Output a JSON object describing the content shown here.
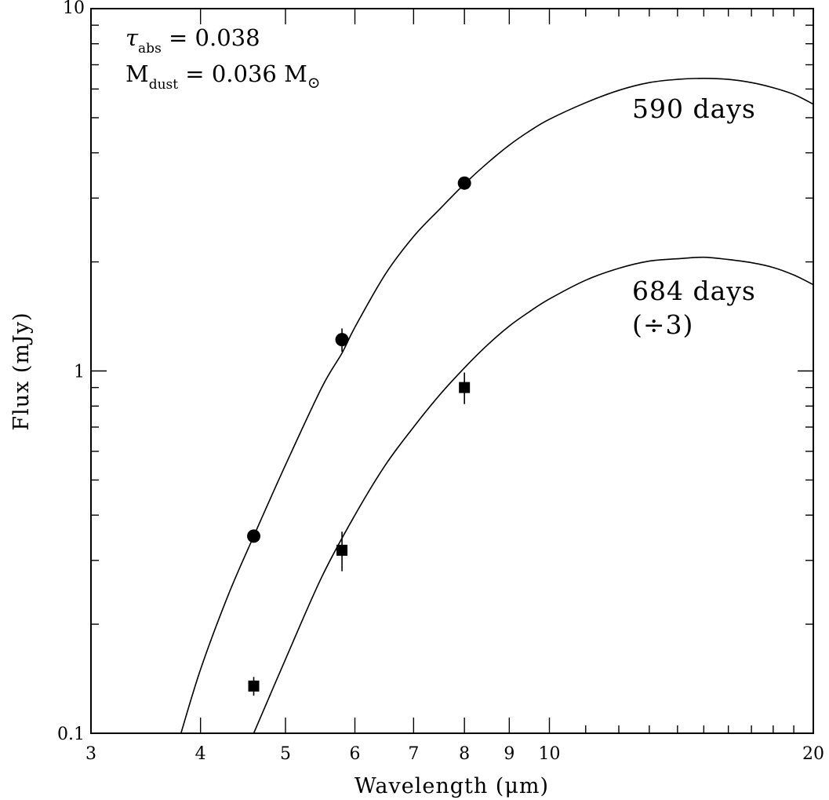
{
  "chart_data": {
    "type": "scatter",
    "title": "",
    "xlabel": "Wavelength (μm)",
    "ylabel": "Flux (mJy)",
    "x_scale": "log",
    "y_scale": "log",
    "xlim": [
      3,
      20
    ],
    "ylim": [
      0.1,
      10
    ],
    "x_ticks": [
      3,
      4,
      5,
      6,
      7,
      8,
      9,
      10,
      20
    ],
    "y_ticks": [
      0.1,
      1,
      10
    ],
    "x_tick_labels": [
      "3",
      "4",
      "5",
      "6",
      "7",
      "8",
      "9",
      "10",
      "20"
    ],
    "y_tick_labels": [
      "0.1",
      "1",
      "10"
    ],
    "grid": false,
    "annotation_lines": [
      {
        "symbol": "τ",
        "sub": "abs",
        "text": " = 0.038"
      },
      {
        "symbol": "M",
        "sub": "dust",
        "text": " = 0.036 M",
        "suffix_symbol": "⊙"
      }
    ],
    "series": [
      {
        "name": "590 days",
        "marker": "circle",
        "points": [
          {
            "x": 4.6,
            "y": 0.35,
            "yerr": 0.01
          },
          {
            "x": 5.8,
            "y": 1.22,
            "yerr": 0.09
          },
          {
            "x": 8.0,
            "y": 3.3,
            "yerr": 0.05
          }
        ],
        "model_curve": {
          "x": [
            3.8,
            4.0,
            4.3,
            4.6,
            5.0,
            5.5,
            5.8,
            6.0,
            6.5,
            7.0,
            7.5,
            8.0,
            8.5,
            9.0,
            9.5,
            10.0,
            11.0,
            12.0,
            13.0,
            14.0,
            15.0,
            16.0,
            17.0,
            18.0,
            19.0,
            20.0
          ],
          "y": [
            0.1,
            0.15,
            0.24,
            0.35,
            0.55,
            0.9,
            1.12,
            1.32,
            1.85,
            2.35,
            2.8,
            3.28,
            3.75,
            4.2,
            4.6,
            4.95,
            5.5,
            5.95,
            6.25,
            6.38,
            6.42,
            6.38,
            6.25,
            6.05,
            5.8,
            5.45
          ]
        }
      },
      {
        "name": "684 days",
        "name_note": "(÷3)",
        "marker": "square",
        "points": [
          {
            "x": 4.6,
            "y": 0.135,
            "yerr": 0.008
          },
          {
            "x": 5.8,
            "y": 0.32,
            "yerr": 0.04
          },
          {
            "x": 8.0,
            "y": 0.9,
            "yerr": 0.09
          }
        ],
        "model_curve": {
          "x": [
            4.6,
            5.0,
            5.5,
            6.0,
            6.5,
            7.0,
            7.5,
            8.0,
            8.5,
            9.0,
            9.5,
            10.0,
            11.0,
            12.0,
            13.0,
            14.0,
            15.0,
            16.0,
            17.0,
            18.0,
            19.0,
            20.0
          ],
          "y": [
            0.1,
            0.16,
            0.27,
            0.4,
            0.55,
            0.7,
            0.86,
            1.02,
            1.18,
            1.33,
            1.46,
            1.58,
            1.78,
            1.92,
            2.01,
            2.04,
            2.06,
            2.03,
            1.99,
            1.93,
            1.84,
            1.73
          ]
        }
      }
    ]
  }
}
